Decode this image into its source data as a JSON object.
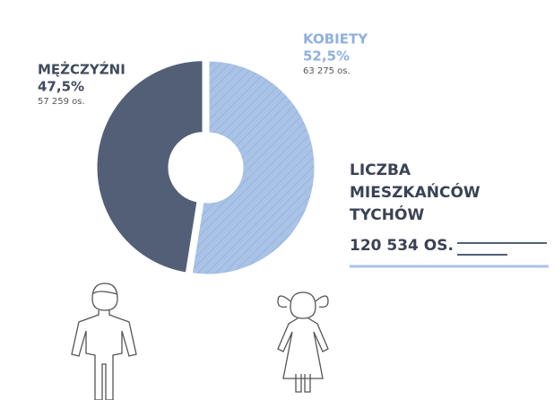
{
  "chart_data": {
    "type": "donut",
    "title": "LICZBA MIESZKAŃCÓW TYCHÓW",
    "total_label": "120 534 OS.",
    "categories": [
      "MĘŻCZYŹNI",
      "KOBIETY"
    ],
    "values": [
      47.5,
      52.5
    ],
    "value_labels": [
      "47,5%",
      "52,5%"
    ],
    "count_labels": [
      "57 259 os.",
      "63 275 os."
    ],
    "colors": [
      "#525f77",
      "#a9c3e7"
    ]
  }
}
